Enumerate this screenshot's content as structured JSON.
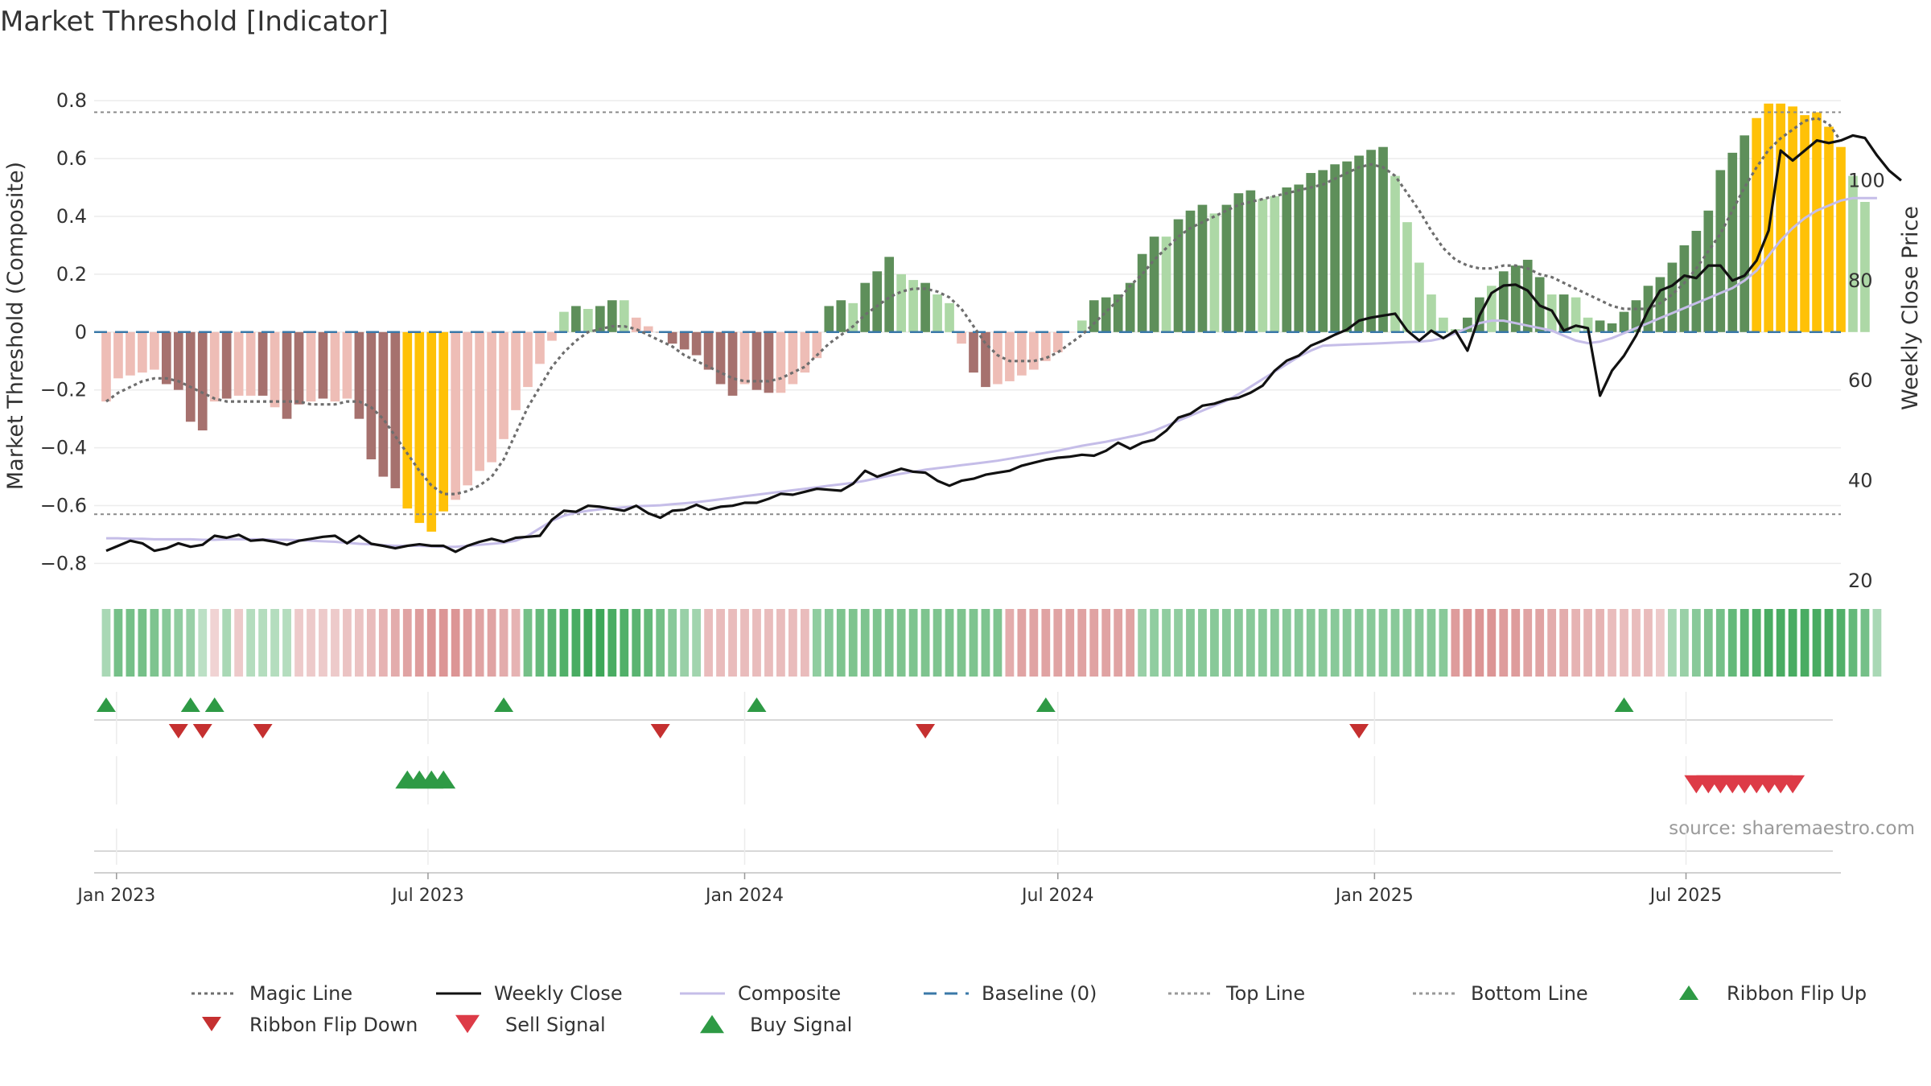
{
  "chart_data": {
    "type": "bar",
    "title": "Market Threshold [Indicator]",
    "ylabel": "Market Threshold (Composite)",
    "ylabel_right": "Weekly Close Price",
    "source": "source: sharemaestro.com",
    "ylim": [
      -0.86,
      0.87
    ],
    "ylim_right": [
      20,
      120
    ],
    "yticks": [
      -0.8,
      -0.6,
      -0.4,
      -0.2,
      0,
      0.2,
      0.4,
      0.6,
      0.8
    ],
    "ytick_labels": [
      "−0.8",
      "−0.6",
      "−0.4",
      "−0.2",
      "0",
      "0.2",
      "0.4",
      "0.6",
      "0.8"
    ],
    "yticks_right": [
      20,
      40,
      60,
      80,
      100
    ],
    "x_range": [
      "2022-12-19",
      "2025-09-29"
    ],
    "x_ticks": [
      {
        "date": "2023-01-01",
        "label": "Jan 2023"
      },
      {
        "date": "2023-07-01",
        "label": "Jul 2023"
      },
      {
        "date": "2024-01-01",
        "label": "Jan 2024"
      },
      {
        "date": "2024-07-01",
        "label": "Jul 2024"
      },
      {
        "date": "2025-01-01",
        "label": "Jan 2025"
      },
      {
        "date": "2025-07-01",
        "label": "Jul 2025"
      }
    ],
    "top_line": 0.76,
    "bottom_line": -0.63,
    "composite_bars": {
      "start_date": "2022-12-26",
      "interval_days": 7,
      "values": [
        -0.24,
        -0.16,
        -0.15,
        -0.14,
        -0.13,
        -0.18,
        -0.2,
        -0.31,
        -0.34,
        -0.24,
        -0.23,
        -0.22,
        -0.22,
        -0.22,
        -0.26,
        -0.3,
        -0.25,
        -0.24,
        -0.23,
        -0.24,
        -0.23,
        -0.3,
        -0.44,
        -0.5,
        -0.54,
        -0.61,
        -0.66,
        -0.69,
        -0.62,
        -0.58,
        -0.53,
        -0.48,
        -0.45,
        -0.37,
        -0.27,
        -0.19,
        -0.11,
        -0.03,
        0.07,
        0.09,
        0.08,
        0.09,
        0.11,
        0.11,
        0.05,
        0.02,
        0.0,
        -0.04,
        -0.06,
        -0.08,
        -0.13,
        -0.18,
        -0.22,
        -0.18,
        -0.2,
        -0.21,
        -0.21,
        -0.18,
        -0.14,
        -0.09,
        0.09,
        0.11,
        0.1,
        0.17,
        0.21,
        0.26,
        0.2,
        0.18,
        0.17,
        0.13,
        0.1,
        -0.04,
        -0.14,
        -0.19,
        -0.18,
        -0.17,
        -0.15,
        -0.13,
        -0.1,
        -0.07,
        0.0,
        0.04,
        0.11,
        0.12,
        0.13,
        0.17,
        0.27,
        0.33,
        0.33,
        0.39,
        0.42,
        0.44,
        0.41,
        0.44,
        0.48,
        0.49,
        0.46,
        0.47,
        0.5,
        0.51,
        0.55,
        0.56,
        0.58,
        0.59,
        0.61,
        0.63,
        0.64,
        0.54,
        0.38,
        0.24,
        0.13,
        0.05,
        0.01,
        0.05,
        0.12,
        0.16,
        0.21,
        0.23,
        0.25,
        0.19,
        0.13,
        0.13,
        0.12,
        0.05,
        0.04,
        0.03,
        0.07,
        0.11,
        0.16,
        0.19,
        0.24,
        0.3,
        0.35,
        0.42,
        0.56,
        0.62,
        0.68,
        0.74,
        0.79,
        0.79,
        0.78,
        0.75,
        0.76,
        0.71,
        0.64,
        0.54,
        0.45
      ],
      "colors_by_week": [
        "pink",
        "pink",
        "pink",
        "pink",
        "pink",
        "rose",
        "rose",
        "rose",
        "rose",
        "pink",
        "rose",
        "pink",
        "pink",
        "rose",
        "pink",
        "rose",
        "rose",
        "pink",
        "rose",
        "pink",
        "pink",
        "rose",
        "rose",
        "rose",
        "rose",
        "gold",
        "gold",
        "gold",
        "gold",
        "pink",
        "pink",
        "pink",
        "pink",
        "pink",
        "pink",
        "pink",
        "pink",
        "pink",
        "lightgreen",
        "green",
        "lightgreen",
        "green",
        "green",
        "lightgreen",
        "pink",
        "pink",
        "rose",
        "rose",
        "rose",
        "rose",
        "rose",
        "rose",
        "rose",
        "pink",
        "rose",
        "rose",
        "pink",
        "pink",
        "pink",
        "pink",
        "green",
        "green",
        "lightgreen",
        "green",
        "green",
        "green",
        "lightgreen",
        "lightgreen",
        "green",
        "lightgreen",
        "lightgreen",
        "pink",
        "rose",
        "rose",
        "pink",
        "pink",
        "pink",
        "pink",
        "pink",
        "pink",
        "pink",
        "lightgreen",
        "green",
        "green",
        "green",
        "green",
        "green",
        "green",
        "lightgreen",
        "green",
        "green",
        "green",
        "lightgreen",
        "green",
        "green",
        "green",
        "lightgreen",
        "lightgreen",
        "green",
        "green",
        "green",
        "green",
        "green",
        "green",
        "green",
        "green",
        "green",
        "lightgreen",
        "lightgreen",
        "lightgreen",
        "lightgreen",
        "lightgreen",
        "lightgreen",
        "green",
        "green",
        "lightgreen",
        "green",
        "green",
        "green",
        "green",
        "lightgreen",
        "green",
        "lightgreen",
        "lightgreen",
        "green",
        "green",
        "green",
        "green",
        "green",
        "green",
        "green",
        "green",
        "green",
        "green",
        "green",
        "green",
        "green",
        "gold",
        "gold",
        "gold",
        "gold",
        "gold",
        "gold",
        "gold",
        "gold",
        "lightgreen",
        "lightgreen",
        "lightgreen"
      ]
    },
    "magic_line": {
      "start_date": "2022-12-26",
      "interval_days": 7,
      "values": [
        -0.24,
        -0.21,
        -0.19,
        -0.17,
        -0.16,
        -0.16,
        -0.17,
        -0.19,
        -0.21,
        -0.23,
        -0.24,
        -0.24,
        -0.24,
        -0.24,
        -0.24,
        -0.24,
        -0.24,
        -0.25,
        -0.25,
        -0.25,
        -0.24,
        -0.24,
        -0.26,
        -0.3,
        -0.36,
        -0.42,
        -0.48,
        -0.53,
        -0.56,
        -0.56,
        -0.55,
        -0.53,
        -0.5,
        -0.44,
        -0.35,
        -0.26,
        -0.19,
        -0.12,
        -0.07,
        -0.03,
        0.0,
        0.01,
        0.02,
        0.02,
        0.01,
        -0.01,
        -0.03,
        -0.05,
        -0.08,
        -0.1,
        -0.12,
        -0.14,
        -0.16,
        -0.17,
        -0.17,
        -0.17,
        -0.16,
        -0.14,
        -0.12,
        -0.08,
        -0.04,
        -0.01,
        0.02,
        0.06,
        0.09,
        0.12,
        0.14,
        0.15,
        0.15,
        0.14,
        0.12,
        0.08,
        0.02,
        -0.04,
        -0.08,
        -0.1,
        -0.1,
        -0.1,
        -0.09,
        -0.07,
        -0.04,
        -0.01,
        0.03,
        0.07,
        0.11,
        0.16,
        0.2,
        0.25,
        0.29,
        0.33,
        0.36,
        0.38,
        0.4,
        0.42,
        0.44,
        0.45,
        0.46,
        0.47,
        0.48,
        0.49,
        0.5,
        0.51,
        0.53,
        0.55,
        0.57,
        0.58,
        0.57,
        0.54,
        0.48,
        0.42,
        0.35,
        0.29,
        0.25,
        0.23,
        0.22,
        0.22,
        0.23,
        0.23,
        0.22,
        0.2,
        0.19,
        0.17,
        0.15,
        0.13,
        0.11,
        0.09,
        0.08,
        0.08,
        0.08,
        0.1,
        0.13,
        0.17,
        0.22,
        0.28,
        0.34,
        0.42,
        0.5,
        0.57,
        0.63,
        0.67,
        0.7,
        0.73,
        0.74,
        0.72,
        0.66
      ]
    },
    "weekly_close": {
      "start_date": "2022-12-26",
      "interval_days": 7,
      "values": [
        26,
        27,
        28,
        27.5,
        26,
        26.5,
        27.5,
        26.8,
        27.2,
        29,
        28.6,
        29.2,
        28,
        28.2,
        27.8,
        27.2,
        28.0,
        28.4,
        28.8,
        29.0,
        27.5,
        29.0,
        27.4,
        27.0,
        26.5,
        27.0,
        27.3,
        27.0,
        27.0,
        25.8,
        27.0,
        27.8,
        28.4,
        27.8,
        28.6,
        28.8,
        29.0,
        32.2,
        34.0,
        33.8,
        35.0,
        34.8,
        34.4,
        34.0,
        35.0,
        33.5,
        32.6,
        34.0,
        34.2,
        35.2,
        34.2,
        34.8,
        35.0,
        35.6,
        35.6,
        36.4,
        37.4,
        37.2,
        37.8,
        38.4,
        38.2,
        38.0,
        39.4,
        42.0,
        40.8,
        41.6,
        42.4,
        41.8,
        41.6,
        40.0,
        39.0,
        40.0,
        40.4,
        41.2,
        41.6,
        42.0,
        43.0,
        43.6,
        44.2,
        44.6,
        44.8,
        45.2,
        45.0,
        46.0,
        47.6,
        46.4,
        47.6,
        48.2,
        50.0,
        52.6,
        53.4,
        55.0,
        55.4,
        56.2,
        56.6,
        57.6,
        59.0,
        62.0,
        64.0,
        65.0,
        67.0,
        68.0,
        69.2,
        70.2,
        72.0,
        72.6,
        73.0,
        73.4,
        70.0,
        68.0,
        70.0,
        68.5,
        70.0,
        66.0,
        73.0,
        77.5,
        79.0,
        79.2,
        78.0,
        75.0,
        74.0,
        70.0,
        71.0,
        70.5,
        57.0,
        62.0,
        65.0,
        69.0,
        74.0,
        78.0,
        79.0,
        81.0,
        80.5,
        83.0,
        83.0,
        80.0,
        81.0,
        84.0,
        90.0,
        106.0,
        104.0,
        106.0,
        108.0,
        107.5,
        108.0,
        109.0,
        108.5,
        105.0,
        102.0,
        100.0
      ]
    },
    "composite_line": {
      "start_date": "2022-12-26",
      "interval_days": 7,
      "values": [
        28.5,
        28.5,
        28.4,
        28.4,
        28.3,
        28.3,
        28.3,
        28.3,
        28.2,
        28.2,
        28.3,
        28.3,
        28.3,
        28.3,
        28.2,
        28.2,
        28.1,
        28.0,
        27.9,
        27.8,
        27.6,
        27.4,
        27.3,
        27.1,
        27.0,
        27.0,
        27.0,
        26.9,
        26.8,
        26.8,
        27.0,
        27.2,
        27.4,
        27.6,
        28.0,
        29.0,
        30.5,
        32.0,
        33.0,
        33.6,
        34.0,
        34.3,
        34.5,
        34.7,
        34.9,
        35.0,
        35.1,
        35.3,
        35.5,
        35.7,
        36.0,
        36.3,
        36.6,
        36.9,
        37.2,
        37.5,
        37.8,
        38.1,
        38.4,
        38.7,
        39.0,
        39.3,
        39.6,
        40.0,
        40.5,
        41.0,
        41.4,
        41.8,
        42.2,
        42.5,
        42.8,
        43.1,
        43.4,
        43.7,
        44.0,
        44.4,
        44.8,
        45.2,
        45.6,
        46.0,
        46.5,
        47.0,
        47.4,
        47.8,
        48.3,
        48.8,
        49.3,
        50.0,
        51.0,
        52.0,
        53.0,
        54.0,
        55.0,
        56.0,
        57.3,
        58.8,
        60.3,
        61.8,
        63.3,
        64.8,
        66.0,
        67.0,
        67.1,
        67.2,
        67.3,
        67.4,
        67.5,
        67.6,
        67.7,
        67.8,
        68.0,
        68.5,
        69.5,
        70.5,
        71.5,
        72.0,
        72.0,
        71.5,
        71.0,
        70.5,
        70.0,
        69.0,
        68.0,
        67.5,
        67.8,
        68.5,
        69.5,
        70.5,
        71.5,
        72.5,
        73.5,
        74.5,
        75.5,
        76.5,
        77.5,
        78.5,
        80.0,
        82.0,
        85.0,
        88.0,
        90.5,
        92.5,
        94.0,
        95.0,
        96.0,
        96.5,
        96.5,
        96.5
      ]
    },
    "ribbon": {
      "start_date": "2022-12-26",
      "interval_days": 7,
      "values": [
        0.3,
        0.6,
        0.6,
        0.6,
        0.55,
        0.5,
        0.45,
        0.4,
        0.2,
        -0.15,
        0.3,
        -0.2,
        0.25,
        0.25,
        0.25,
        0.25,
        -0.2,
        -0.2,
        -0.2,
        -0.2,
        -0.25,
        -0.25,
        -0.3,
        -0.35,
        -0.4,
        -0.45,
        -0.5,
        -0.55,
        -0.55,
        -0.55,
        -0.5,
        -0.45,
        -0.45,
        -0.4,
        -0.35,
        0.6,
        0.7,
        0.75,
        0.8,
        0.85,
        0.9,
        0.9,
        0.85,
        0.8,
        0.75,
        0.7,
        0.6,
        0.5,
        0.4,
        0.35,
        -0.3,
        -0.3,
        -0.3,
        -0.3,
        -0.3,
        -0.3,
        -0.3,
        -0.3,
        -0.3,
        0.45,
        0.5,
        0.55,
        0.55,
        0.55,
        0.55,
        0.55,
        0.55,
        0.55,
        0.55,
        0.55,
        0.55,
        0.55,
        0.55,
        0.55,
        0.55,
        -0.4,
        -0.45,
        -0.45,
        -0.45,
        -0.45,
        -0.45,
        -0.45,
        -0.45,
        -0.45,
        -0.45,
        -0.45,
        0.4,
        0.45,
        0.45,
        0.45,
        0.5,
        0.5,
        0.5,
        0.5,
        0.5,
        0.5,
        0.5,
        0.5,
        0.5,
        0.5,
        0.5,
        0.5,
        0.5,
        0.5,
        0.5,
        0.5,
        0.5,
        0.5,
        0.5,
        0.5,
        0.5,
        0.5,
        -0.5,
        -0.55,
        -0.55,
        -0.55,
        -0.5,
        -0.5,
        -0.45,
        -0.45,
        -0.4,
        -0.4,
        -0.35,
        -0.35,
        -0.35,
        -0.3,
        -0.3,
        -0.3,
        -0.3,
        -0.2,
        0.3,
        0.4,
        0.5,
        0.55,
        0.6,
        0.7,
        0.75,
        0.8,
        0.85,
        0.85,
        0.85,
        0.85,
        0.85,
        0.85,
        0.8,
        0.7,
        0.6,
        0.3
      ]
    },
    "ribbon_flip_up": [
      "2022-12-26",
      "2023-02-13",
      "2023-02-27",
      "2023-08-14",
      "2024-01-08",
      "2024-06-24",
      "2025-05-26"
    ],
    "ribbon_flip_down": [
      "2023-02-06",
      "2023-02-20",
      "2023-03-27",
      "2023-11-13",
      "2024-04-15",
      "2024-12-23"
    ],
    "buy_signal": [
      "2023-06-19",
      "2023-06-26",
      "2023-07-03",
      "2023-07-10"
    ],
    "sell_signal": [
      "2025-07-07",
      "2025-07-14",
      "2025-07-21",
      "2025-07-28",
      "2025-08-04",
      "2025-08-11",
      "2025-08-18",
      "2025-08-25",
      "2025-09-01"
    ],
    "legend": [
      {
        "label": "Magic Line",
        "style": "dotted",
        "color": "#6e6e6e"
      },
      {
        "label": "Weekly Close",
        "style": "solid",
        "color": "#111111"
      },
      {
        "label": "Composite",
        "style": "solid",
        "color": "#c5bde8"
      },
      {
        "label": "Baseline (0)",
        "style": "dashed",
        "color": "#3a78a8"
      },
      {
        "label": "Top Line",
        "style": "dotted",
        "color": "#999999"
      },
      {
        "label": "Bottom Line",
        "style": "dotted",
        "color": "#999999"
      },
      {
        "label": "Ribbon Flip Up",
        "style": "triangle-up",
        "color": "#2e9a45"
      },
      {
        "label": "Ribbon Flip Down",
        "style": "triangle-down",
        "color": "#c53030"
      },
      {
        "label": "Sell Signal",
        "style": "triangle-down",
        "color": "#dd3b47"
      },
      {
        "label": "Buy Signal",
        "style": "triangle-up",
        "color": "#2e9a45"
      }
    ],
    "legend_placement": "bottom",
    "grid": true,
    "colors": {
      "green": "#5e8f5a",
      "lightgreen": "#add8a6",
      "pink": "#eebdb6",
      "rose": "#a6716e",
      "gold": "#ffc107",
      "baseline": "#3a78a8",
      "magic": "#6e6e6e",
      "close": "#111111",
      "composite": "#c5bde8"
    }
  }
}
